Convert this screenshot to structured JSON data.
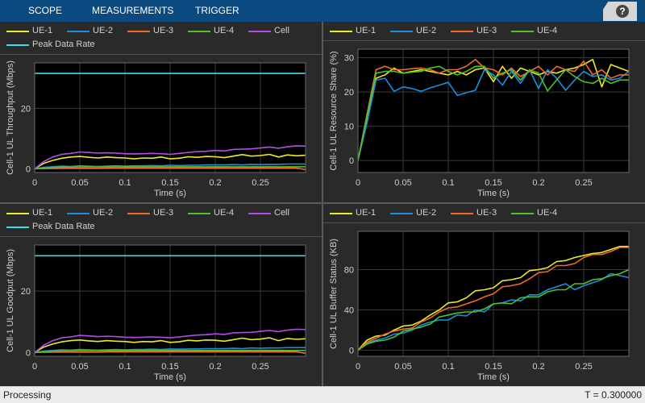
{
  "toolstrip": {
    "tabs": [
      "SCOPE",
      "MEASUREMENTS",
      "TRIGGER"
    ],
    "help_glyph": "?"
  },
  "status": {
    "text": "Processing",
    "time": "T = 0.300000"
  },
  "colors": {
    "UE-1": "#ebeb2a",
    "UE-2": "#1a8fe0",
    "UE-3": "#f26a2b",
    "UE-4": "#4fc12a",
    "Cell": "#b24ee6",
    "Peak Data Rate": "#33e0e8"
  },
  "chart_data": [
    {
      "type": "line",
      "id": "throughput",
      "ylabel": "Cell-1 UL Throughput (Mbps)",
      "xlabel": "Time (s)",
      "xlim": [
        0,
        0.3
      ],
      "ylim": [
        -1.2,
        35
      ],
      "xticks": [
        0,
        0.05,
        0.1,
        0.15,
        0.2,
        0.25
      ],
      "xtick_labels": [
        "0",
        "0.05",
        "0.1",
        "0.15",
        "0.2",
        "0.25"
      ],
      "yticks": [
        0,
        20
      ],
      "ytick_labels": [
        "0",
        "20"
      ],
      "legend_rows": [
        [
          "UE-1",
          "UE-2",
          "UE-3",
          "UE-4",
          "Cell"
        ],
        [
          "Peak Data Rate"
        ]
      ],
      "x": [
        0,
        0.01,
        0.02,
        0.03,
        0.04,
        0.05,
        0.06,
        0.07,
        0.08,
        0.09,
        0.1,
        0.11,
        0.12,
        0.13,
        0.14,
        0.15,
        0.16,
        0.17,
        0.18,
        0.19,
        0.2,
        0.21,
        0.22,
        0.23,
        0.24,
        0.25,
        0.26,
        0.27,
        0.28,
        0.29,
        0.3
      ],
      "series": [
        {
          "name": "UE-1",
          "values": [
            0,
            1.8,
            2.8,
            3.5,
            3.9,
            4.1,
            3.8,
            3.6,
            3.9,
            3.7,
            3.6,
            3.3,
            3.6,
            3.5,
            3.9,
            3.3,
            3.5,
            4.0,
            3.8,
            4.1,
            4.0,
            3.7,
            4.2,
            4.7,
            4.2,
            4.4,
            4.8,
            3.9,
            4.6,
            4.3,
            4.5
          ]
        },
        {
          "name": "UE-2",
          "values": [
            0,
            0.5,
            0.7,
            0.9,
            0.8,
            1.0,
            0.9,
            0.8,
            0.9,
            1.0,
            0.9,
            1.0,
            1.0,
            1.1,
            1.0,
            1.2,
            1.1,
            1.2,
            1.2,
            1.3,
            1.3,
            1.3,
            1.4,
            1.3,
            1.5,
            1.4,
            1.5,
            1.5,
            1.6,
            1.6,
            1.6
          ]
        },
        {
          "name": "UE-3",
          "values": [
            0,
            0.1,
            0.1,
            0.2,
            0.2,
            0.2,
            0.2,
            0.2,
            0.3,
            0.3,
            0.3,
            0.3,
            0.3,
            0.3,
            0.3,
            0.3,
            0.3,
            0.3,
            0.3,
            0.3,
            0.3,
            0.3,
            0.3,
            0.3,
            0.3,
            0.3,
            0.3,
            0.3,
            0.3,
            0.3,
            -0.3
          ]
        },
        {
          "name": "UE-4",
          "values": [
            0,
            0.3,
            0.5,
            0.6,
            0.6,
            0.7,
            0.7,
            0.7,
            0.7,
            0.7,
            0.7,
            0.7,
            0.7,
            0.7,
            0.7,
            0.7,
            0.7,
            0.7,
            0.7,
            0.7,
            0.7,
            0.7,
            0.7,
            0.7,
            0.7,
            0.7,
            0.7,
            0.7,
            0.7,
            0.7,
            0.7
          ]
        },
        {
          "name": "Cell",
          "values": [
            0,
            2.4,
            3.9,
            4.8,
            5.1,
            5.6,
            5.4,
            5.2,
            5.3,
            5.2,
            5.0,
            4.9,
            5.0,
            5.1,
            5.0,
            4.8,
            5.1,
            5.4,
            5.7,
            5.8,
            6.1,
            5.9,
            6.4,
            6.5,
            6.6,
            6.9,
            7.2,
            6.8,
            7.3,
            7.6,
            7.5
          ]
        },
        {
          "name": "Peak Data Rate",
          "values": [
            31.5,
            31.5,
            31.5,
            31.5,
            31.5,
            31.5,
            31.5,
            31.5,
            31.5,
            31.5,
            31.5,
            31.5,
            31.5,
            31.5,
            31.5,
            31.5,
            31.5,
            31.5,
            31.5,
            31.5,
            31.5,
            31.5,
            31.5,
            31.5,
            31.5,
            31.5,
            31.5,
            31.5,
            31.5,
            31.5,
            31.5
          ]
        }
      ]
    },
    {
      "type": "line",
      "id": "resource",
      "ylabel": "Cell-1 UL Resource Share (%)",
      "xlabel": "Time (s)",
      "xlim": [
        0,
        0.3
      ],
      "ylim": [
        -3.5,
        32.5
      ],
      "xticks": [
        0,
        0.05,
        0.1,
        0.15,
        0.2,
        0.25
      ],
      "xtick_labels": [
        "0",
        "0.05",
        "0.1",
        "0.15",
        "0.2",
        "0.25"
      ],
      "yticks": [
        0,
        10,
        20,
        30
      ],
      "ytick_labels": [
        "0",
        "10",
        "20",
        "30"
      ],
      "legend_rows": [
        [
          "UE-1",
          "UE-2",
          "UE-3",
          "UE-4"
        ]
      ],
      "x": [
        0,
        0.01,
        0.02,
        0.03,
        0.04,
        0.05,
        0.06,
        0.07,
        0.08,
        0.09,
        0.1,
        0.11,
        0.12,
        0.13,
        0.14,
        0.15,
        0.16,
        0.17,
        0.18,
        0.19,
        0.2,
        0.21,
        0.22,
        0.23,
        0.24,
        0.25,
        0.26,
        0.27,
        0.28,
        0.29,
        0.3
      ],
      "series": [
        {
          "name": "UE-1",
          "values": [
            0,
            12,
            24,
            25,
            27,
            25.5,
            26,
            26.5,
            26,
            25.5,
            25,
            26,
            25,
            26.5,
            27,
            23,
            27.5,
            24,
            27,
            26,
            25,
            26,
            25.5,
            26.5,
            27,
            28,
            29.5,
            21.5,
            28,
            27,
            26
          ]
        },
        {
          "name": "UE-2",
          "values": [
            0,
            11,
            23.5,
            24,
            20.2,
            21.5,
            21,
            20.2,
            21.2,
            22,
            22.8,
            19,
            19.8,
            20.5,
            26.5,
            25,
            22,
            26,
            22.5,
            26.5,
            21,
            26.5,
            24,
            20.5,
            23.5,
            26,
            24.5,
            25,
            23.5,
            24,
            26
          ]
        },
        {
          "name": "UE-3",
          "values": [
            0,
            13.5,
            26.5,
            27.5,
            26.5,
            26.5,
            26.8,
            27,
            26.5,
            25.5,
            26.5,
            26.5,
            27.5,
            29.5,
            27,
            26.5,
            25,
            27,
            24.5,
            26,
            27.5,
            25,
            27.5,
            26.5,
            26,
            29,
            25,
            26.5,
            24,
            25,
            25
          ]
        },
        {
          "name": "UE-4",
          "values": [
            0,
            13,
            25.5,
            26,
            26,
            25.5,
            25.8,
            26,
            27,
            27.5,
            26,
            25,
            26,
            27.5,
            27.5,
            24,
            25.5,
            26.5,
            23.5,
            26.5,
            25.5,
            20.3,
            23.5,
            26.5,
            24.5,
            23,
            22.5,
            24,
            22.5,
            23.5,
            23.5
          ]
        }
      ]
    },
    {
      "type": "line",
      "id": "goodput",
      "ylabel": "Cell-1 UL Goodput (Mbps)",
      "xlabel": "Time (s)",
      "xlim": [
        0,
        0.3
      ],
      "ylim": [
        -1.2,
        35
      ],
      "xticks": [
        0,
        0.05,
        0.1,
        0.15,
        0.2,
        0.25
      ],
      "xtick_labels": [
        "0",
        "0.05",
        "0.1",
        "0.15",
        "0.2",
        "0.25"
      ],
      "yticks": [
        0,
        20
      ],
      "ytick_labels": [
        "0",
        "20"
      ],
      "legend_rows": [
        [
          "UE-1",
          "UE-2",
          "UE-3",
          "UE-4",
          "Cell"
        ],
        [
          "Peak Data Rate"
        ]
      ],
      "x": [
        0,
        0.01,
        0.02,
        0.03,
        0.04,
        0.05,
        0.06,
        0.07,
        0.08,
        0.09,
        0.1,
        0.11,
        0.12,
        0.13,
        0.14,
        0.15,
        0.16,
        0.17,
        0.18,
        0.19,
        0.2,
        0.21,
        0.22,
        0.23,
        0.24,
        0.25,
        0.26,
        0.27,
        0.28,
        0.29,
        0.3
      ],
      "series": [
        {
          "name": "UE-1",
          "values": [
            0,
            1.8,
            2.8,
            3.5,
            3.9,
            4.1,
            3.8,
            3.6,
            3.9,
            3.7,
            3.6,
            3.3,
            3.6,
            3.5,
            3.9,
            3.3,
            3.5,
            4.0,
            3.8,
            4.1,
            4.0,
            3.7,
            4.2,
            4.7,
            4.2,
            4.4,
            4.8,
            3.9,
            4.6,
            4.3,
            4.5
          ]
        },
        {
          "name": "UE-2",
          "values": [
            0,
            0.5,
            0.7,
            0.9,
            0.8,
            1.0,
            0.9,
            0.8,
            0.9,
            1.0,
            0.9,
            1.0,
            1.0,
            1.1,
            1.0,
            1.2,
            1.1,
            1.2,
            1.2,
            1.3,
            1.3,
            1.3,
            1.4,
            1.3,
            1.5,
            1.4,
            1.5,
            1.5,
            1.6,
            1.6,
            1.6
          ]
        },
        {
          "name": "UE-3",
          "values": [
            0,
            0.1,
            0.1,
            0.2,
            0.2,
            0.2,
            0.2,
            0.2,
            0.3,
            0.3,
            0.3,
            0.3,
            0.3,
            0.3,
            0.3,
            0.3,
            0.3,
            0.3,
            0.3,
            0.3,
            0.3,
            0.3,
            0.3,
            0.3,
            0.3,
            0.3,
            0.3,
            0.3,
            0.3,
            0.3,
            -0.3
          ]
        },
        {
          "name": "UE-4",
          "values": [
            0,
            0.3,
            0.5,
            0.6,
            0.6,
            0.7,
            0.7,
            0.7,
            0.7,
            0.7,
            0.7,
            0.7,
            0.7,
            0.7,
            0.7,
            0.7,
            0.7,
            0.7,
            0.7,
            0.7,
            0.7,
            0.7,
            0.7,
            0.7,
            0.7,
            0.7,
            0.7,
            0.7,
            0.7,
            0.7,
            0.7
          ]
        },
        {
          "name": "Cell",
          "values": [
            0,
            2.4,
            3.9,
            4.8,
            5.1,
            5.6,
            5.4,
            5.2,
            5.3,
            5.2,
            5.0,
            4.9,
            5.0,
            5.1,
            5.0,
            4.8,
            5.1,
            5.4,
            5.7,
            5.8,
            6.1,
            5.9,
            6.4,
            6.5,
            6.6,
            6.9,
            7.2,
            6.8,
            7.3,
            7.6,
            7.5
          ]
        },
        {
          "name": "Peak Data Rate",
          "values": [
            31.5,
            31.5,
            31.5,
            31.5,
            31.5,
            31.5,
            31.5,
            31.5,
            31.5,
            31.5,
            31.5,
            31.5,
            31.5,
            31.5,
            31.5,
            31.5,
            31.5,
            31.5,
            31.5,
            31.5,
            31.5,
            31.5,
            31.5,
            31.5,
            31.5,
            31.5,
            31.5,
            31.5,
            31.5,
            31.5,
            31.5
          ]
        }
      ]
    },
    {
      "type": "line",
      "id": "buffer",
      "ylabel": "Cell-1 UL Buffer Status (KB)",
      "xlabel": "Time (s)",
      "xlim": [
        0,
        0.3
      ],
      "ylim": [
        -6,
        118
      ],
      "xticks": [
        0,
        0.05,
        0.1,
        0.15,
        0.2,
        0.25
      ],
      "xtick_labels": [
        "0",
        "0.05",
        "0.1",
        "0.15",
        "0.2",
        "0.25"
      ],
      "yticks": [
        0,
        40,
        80
      ],
      "ytick_labels": [
        "0",
        "40",
        "80"
      ],
      "legend_rows": [
        [
          "UE-1",
          "UE-2",
          "UE-3",
          "UE-4"
        ]
      ],
      "x": [
        0,
        0.01,
        0.02,
        0.03,
        0.04,
        0.05,
        0.06,
        0.07,
        0.08,
        0.09,
        0.1,
        0.11,
        0.12,
        0.13,
        0.14,
        0.15,
        0.16,
        0.17,
        0.18,
        0.19,
        0.2,
        0.21,
        0.22,
        0.23,
        0.24,
        0.25,
        0.26,
        0.27,
        0.28,
        0.29,
        0.3
      ],
      "series": [
        {
          "name": "UE-1",
          "values": [
            0,
            10,
            14,
            15,
            20,
            24,
            25,
            29,
            35,
            40,
            47,
            48,
            52,
            59,
            60,
            62,
            69,
            70,
            72,
            79,
            80,
            82,
            88,
            89,
            92,
            94,
            96,
            97,
            100,
            103,
            103
          ]
        },
        {
          "name": "UE-2",
          "values": [
            0,
            7,
            10,
            12,
            16,
            17,
            20,
            25,
            28,
            30,
            30,
            35,
            34,
            40,
            38,
            46,
            47,
            50,
            49,
            55,
            55,
            60,
            63,
            66,
            60,
            64,
            67,
            70,
            76,
            74,
            72
          ]
        },
        {
          "name": "UE-3",
          "values": [
            0,
            8,
            12,
            16,
            19,
            21,
            22,
            28,
            32,
            38,
            42,
            43,
            46,
            49,
            53,
            56,
            63,
            64,
            66,
            71,
            77,
            78,
            84,
            84,
            86,
            92,
            95,
            95,
            98,
            102,
            102
          ]
        },
        {
          "name": "UE-4",
          "values": [
            0,
            6,
            9,
            10,
            13,
            19,
            21,
            23,
            26,
            33,
            35,
            37,
            38,
            38,
            41,
            46,
            47,
            46,
            52,
            53,
            53,
            58,
            60,
            60,
            66,
            66,
            70,
            71,
            74,
            76,
            80
          ]
        }
      ]
    }
  ]
}
